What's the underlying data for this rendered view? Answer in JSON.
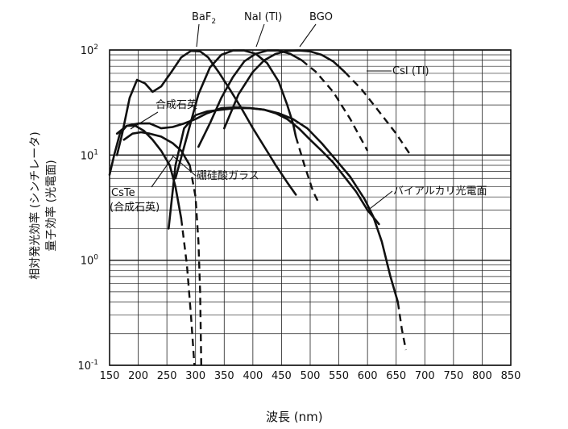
{
  "chart_data": {
    "type": "line",
    "xlabel": "波長 (nm)",
    "ylabel": [
      "相対発光効率 (シンチレータ)",
      "量子効率 (光電面)"
    ],
    "x_ticks": [
      "150",
      "200",
      "250",
      "300",
      "350",
      "400",
      "450",
      "500",
      "550",
      "600",
      "650",
      "700",
      "750",
      "800",
      "850"
    ],
    "xlim": [
      150,
      850
    ],
    "yscale": "log",
    "ylim": [
      0.1,
      100
    ],
    "y_ticks": [
      {
        "base": "10",
        "exp": "-1",
        "value": 0.1
      },
      {
        "base": "10",
        "exp": "0",
        "value": 1
      },
      {
        "base": "10",
        "exp": "1",
        "value": 10
      },
      {
        "base": "10",
        "exp": "2",
        "value": 100
      }
    ],
    "grid": true,
    "series": [
      {
        "name": "BaF2",
        "label_base": "BaF",
        "label_sub": "2",
        "solid": [
          [
            163,
            10
          ],
          [
            172,
            16
          ],
          [
            185,
            35
          ],
          [
            198,
            52
          ],
          [
            212,
            48
          ],
          [
            225,
            40
          ],
          [
            240,
            45
          ],
          [
            258,
            62
          ],
          [
            275,
            85
          ],
          [
            292,
            98
          ],
          [
            308,
            97
          ],
          [
            322,
            85
          ],
          [
            340,
            62
          ],
          [
            360,
            42
          ],
          [
            380,
            28
          ],
          [
            400,
            18
          ],
          [
            420,
            12
          ],
          [
            440,
            8
          ],
          [
            460,
            5.5
          ],
          [
            475,
            4.2
          ]
        ],
        "dashed": []
      },
      {
        "name": "NaI (Tl)",
        "solid": [
          [
            265,
            6.0
          ],
          [
            285,
            15
          ],
          [
            305,
            38
          ],
          [
            325,
            68
          ],
          [
            345,
            90
          ],
          [
            365,
            99
          ],
          [
            385,
            99
          ],
          [
            405,
            92
          ],
          [
            425,
            75
          ],
          [
            445,
            50
          ],
          [
            460,
            30
          ],
          [
            470,
            20
          ],
          [
            475,
            15
          ]
        ],
        "dashed": [
          [
            475,
            15
          ],
          [
            490,
            8
          ],
          [
            505,
            4.5
          ],
          [
            515,
            3.5
          ]
        ]
      },
      {
        "name": "BGO",
        "solid": [
          [
            305,
            12
          ],
          [
            325,
            20
          ],
          [
            345,
            35
          ],
          [
            365,
            55
          ],
          [
            385,
            78
          ],
          [
            405,
            92
          ],
          [
            425,
            99
          ],
          [
            445,
            99
          ],
          [
            465,
            92
          ],
          [
            485,
            80
          ]
        ],
        "dashed": [
          [
            485,
            80
          ],
          [
            510,
            62
          ],
          [
            540,
            40
          ],
          [
            570,
            22
          ],
          [
            600,
            11
          ]
        ]
      },
      {
        "name": "CsI (Tl)",
        "solid": [
          [
            350,
            18
          ],
          [
            375,
            38
          ],
          [
            400,
            62
          ],
          [
            420,
            80
          ],
          [
            440,
            92
          ],
          [
            460,
            98
          ],
          [
            480,
            99
          ],
          [
            500,
            97
          ],
          [
            520,
            90
          ],
          [
            540,
            78
          ],
          [
            560,
            62
          ]
        ],
        "dashed": [
          [
            560,
            62
          ],
          [
            590,
            42
          ],
          [
            620,
            26
          ],
          [
            650,
            16
          ],
          [
            675,
            10
          ]
        ]
      },
      {
        "name": "合成石英",
        "solid": [
          [
            163,
            16
          ],
          [
            180,
            19
          ],
          [
            200,
            20
          ],
          [
            220,
            20
          ],
          [
            240,
            18
          ],
          [
            260,
            18.5
          ],
          [
            280,
            20
          ],
          [
            300,
            22
          ],
          [
            320,
            25
          ],
          [
            345,
            28
          ],
          [
            370,
            28.5
          ],
          [
            395,
            28
          ],
          [
            420,
            27
          ],
          [
            440,
            25
          ],
          [
            460,
            22
          ],
          [
            480,
            18
          ],
          [
            500,
            14
          ],
          [
            520,
            11
          ],
          [
            540,
            8.5
          ],
          [
            560,
            6.2
          ],
          [
            580,
            4.5
          ],
          [
            600,
            3.0
          ],
          [
            620,
            2.2
          ]
        ],
        "dashed": []
      },
      {
        "name": "硼硅酸ガラス",
        "solid": [
          [
            175,
            14
          ],
          [
            190,
            16
          ],
          [
            205,
            16.5
          ],
          [
            220,
            16
          ],
          [
            240,
            15
          ],
          [
            260,
            13
          ],
          [
            275,
            11
          ],
          [
            290,
            8
          ]
        ],
        "dashed": [
          [
            290,
            8
          ],
          [
            300,
            4
          ],
          [
            305,
            1.5
          ],
          [
            308,
            0.5
          ],
          [
            310,
            0.1
          ]
        ]
      },
      {
        "name": "バイアルカリ光電面",
        "solid": [
          [
            253,
            2.0
          ],
          [
            265,
            8
          ],
          [
            280,
            18
          ],
          [
            300,
            24
          ],
          [
            320,
            26
          ],
          [
            345,
            27
          ],
          [
            370,
            28
          ],
          [
            395,
            28
          ],
          [
            420,
            27
          ],
          [
            445,
            25
          ],
          [
            470,
            22
          ],
          [
            495,
            18
          ],
          [
            520,
            13
          ],
          [
            545,
            9
          ],
          [
            570,
            6.2
          ],
          [
            595,
            3.8
          ],
          [
            610,
            2.6
          ],
          [
            625,
            1.5
          ],
          [
            640,
            0.7
          ],
          [
            653,
            0.4
          ]
        ],
        "dashed": [
          [
            653,
            0.4
          ],
          [
            660,
            0.22
          ],
          [
            667,
            0.14
          ]
        ]
      },
      {
        "name": "CsTe (合成石英)",
        "label_line1": "CsTe",
        "label_line2": "(合成石英)",
        "solid": [
          [
            150,
            6.5
          ],
          [
            158,
            10
          ],
          [
            168,
            16
          ],
          [
            180,
            19
          ],
          [
            195,
            19
          ],
          [
            210,
            17
          ],
          [
            225,
            14
          ],
          [
            240,
            11
          ],
          [
            255,
            8
          ],
          [
            265,
            5
          ],
          [
            275,
            2.5
          ]
        ],
        "dashed": [
          [
            275,
            2.5
          ],
          [
            285,
            0.9
          ],
          [
            292,
            0.3
          ],
          [
            298,
            0.1
          ]
        ]
      }
    ]
  }
}
